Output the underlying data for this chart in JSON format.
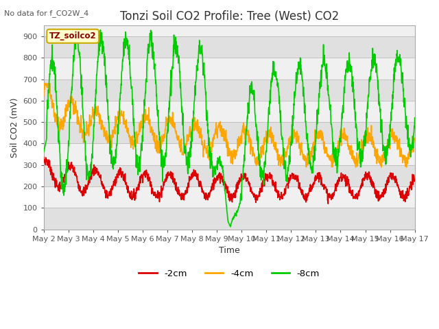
{
  "title": "Tonzi Soil CO2 Profile: Tree (West) CO2",
  "top_left_text": "No data for f_CO2W_4",
  "ylabel": "Soil CO2 (mV)",
  "xlabel": "Time",
  "box_label": "TZ_soilco2",
  "ylim": [
    0,
    950
  ],
  "yticks": [
    0,
    100,
    200,
    300,
    400,
    500,
    600,
    700,
    800,
    900
  ],
  "xtick_labels": [
    "May 2",
    "May 3",
    "May 4",
    "May 5",
    "May 6",
    "May 7",
    "May 8",
    "May 9",
    "May 10",
    "May 11",
    "May 12",
    "May 13",
    "May 14",
    "May 15",
    "May 16",
    "May 17"
  ],
  "legend_entries": [
    {
      "label": "-2cm",
      "color": "#dd0000"
    },
    {
      "label": "-4cm",
      "color": "#ffa500"
    },
    {
      "label": "-8cm",
      "color": "#00cc00"
    }
  ],
  "neg2cm_color": "#dd0000",
  "neg4cm_color": "#ffa500",
  "neg8cm_color": "#00cc00",
  "fig_bg": "#ffffff",
  "plot_bg_light": "#f0f0f0",
  "plot_bg_dark": "#e0e0e0",
  "grid_color": "#cccccc",
  "title_fontsize": 12,
  "label_fontsize": 9,
  "tick_fontsize": 8,
  "box_label_color": "#8B0000",
  "box_label_bg": "#ffffcc",
  "box_label_edge": "#ccaa00"
}
